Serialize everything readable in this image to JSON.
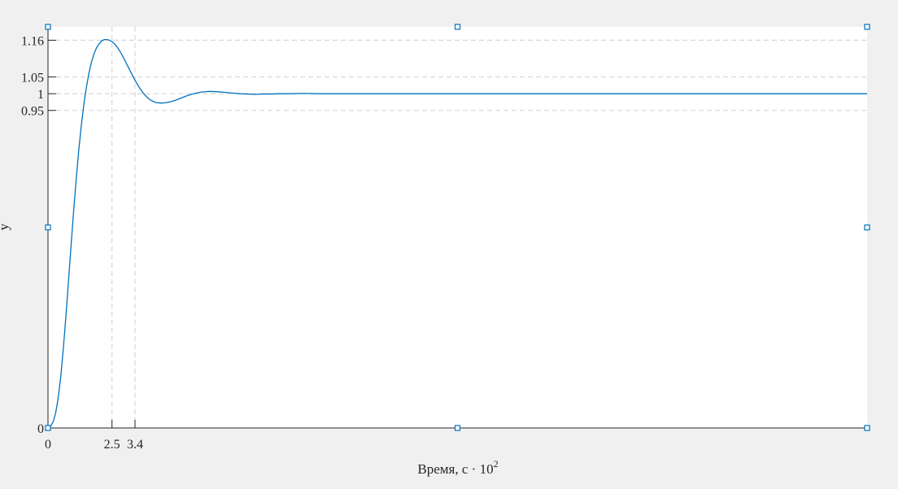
{
  "chart_data": {
    "type": "line",
    "title": "",
    "xlabel": "Время, с · 10",
    "xlabel_superscript": "2",
    "ylabel": "y",
    "xlim": [
      0,
      32
    ],
    "ylim": [
      0,
      1.2
    ],
    "x_ticks": [
      {
        "value": 0,
        "label": "0"
      },
      {
        "value": 2.5,
        "label": "2.5"
      },
      {
        "value": 3.4,
        "label": "3.4"
      }
    ],
    "y_ticks": [
      {
        "value": 0,
        "label": "0"
      },
      {
        "value": 0.95,
        "label": "0.95"
      },
      {
        "value": 1,
        "label": "1"
      },
      {
        "value": 1.05,
        "label": "1.05"
      },
      {
        "value": 1.16,
        "label": "1.16"
      }
    ],
    "grid": true,
    "x_grid_values": [
      2.5,
      3.4
    ],
    "y_grid_values": [
      0.95,
      1,
      1.05,
      1.16
    ],
    "series": [
      {
        "color": "#0072bd",
        "x": [
          0,
          0.1,
          0.2,
          0.3,
          0.4,
          0.5,
          0.6,
          0.7,
          0.8,
          0.9,
          1.0,
          1.1,
          1.2,
          1.3,
          1.4,
          1.5,
          1.6,
          1.7,
          1.8,
          1.9,
          2.0,
          2.1,
          2.2,
          2.3,
          2.4,
          2.5,
          2.6,
          2.7,
          2.8,
          2.9,
          3.0,
          3.1,
          3.2,
          3.3,
          3.4,
          3.5,
          3.6,
          3.7,
          3.8,
          3.9,
          4.0,
          4.2,
          4.4,
          4.6,
          4.8,
          5.0,
          5.2,
          5.4,
          5.6,
          5.8,
          6.0,
          6.3,
          6.6,
          6.9,
          7.2,
          7.5,
          7.8,
          8.1,
          8.4,
          8.7,
          9.0,
          9.5,
          10.0,
          10.5,
          11.0,
          12.0,
          13.0,
          14.0,
          16.0,
          18.0,
          20.0,
          22.0,
          24.0,
          26.0,
          28.0,
          30.0,
          32.0
        ],
        "y": [
          0,
          0.005,
          0.018,
          0.045,
          0.09,
          0.155,
          0.238,
          0.334,
          0.438,
          0.544,
          0.647,
          0.743,
          0.829,
          0.904,
          0.967,
          1.019,
          1.062,
          1.095,
          1.12,
          1.138,
          1.15,
          1.158,
          1.162,
          1.162,
          1.16,
          1.156,
          1.149,
          1.14,
          1.128,
          1.115,
          1.1,
          1.085,
          1.07,
          1.055,
          1.04,
          1.027,
          1.015,
          1.004,
          0.995,
          0.987,
          0.981,
          0.974,
          0.972,
          0.973,
          0.976,
          0.981,
          0.987,
          0.993,
          0.998,
          1.002,
          1.005,
          1.007,
          1.006,
          1.004,
          1.002,
          1.0,
          0.999,
          0.998,
          0.999,
          0.999,
          1.0,
          1.0,
          1.001,
          1.0,
          1.0,
          1.0,
          1.0,
          1.0,
          1.0,
          1.0,
          1.0,
          1.0,
          1.0,
          1.0,
          1.0,
          1.0,
          1.0
        ]
      }
    ]
  }
}
